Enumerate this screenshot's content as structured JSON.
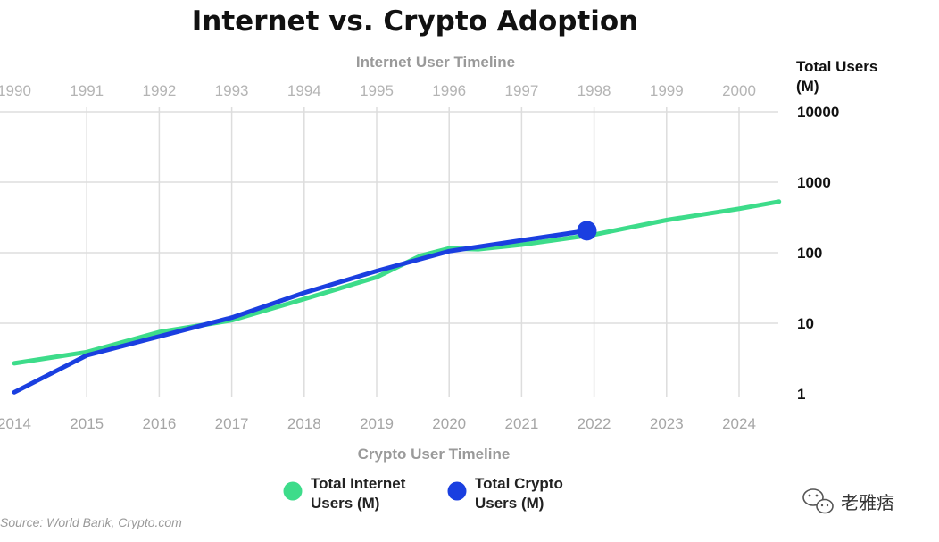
{
  "chart_data": {
    "type": "line",
    "title": "Internet vs. Crypto Adoption",
    "top_axis_label": "Internet User Timeline",
    "top_ticks": [
      "1990",
      "1991",
      "1992",
      "1993",
      "1994",
      "1995",
      "1996",
      "1997",
      "1998",
      "1999",
      "2000"
    ],
    "bottom_axis_label": "Crypto User Timeline",
    "bottom_ticks": [
      "2014",
      "2015",
      "2016",
      "2017",
      "2018",
      "2019",
      "2020",
      "2021",
      "2022",
      "2023",
      "2024"
    ],
    "ylabel_line1": "Total Users",
    "ylabel_line2": "(M)",
    "yscale": "log",
    "ylim": [
      1,
      10000
    ],
    "y_ticks": [
      1,
      10,
      100,
      1000,
      10000
    ],
    "y_tick_labels": [
      "1",
      "10",
      "100",
      "1000",
      "10000"
    ],
    "xlim": [
      0,
      10.6
    ],
    "series": [
      {
        "name": "Total Internet Users (M)",
        "color": "#3ddc8a",
        "x": [
          0,
          1,
          2,
          3,
          4,
          5,
          5.6,
          6,
          6.4,
          7,
          8,
          9,
          10,
          10.55
        ],
        "y": [
          2.7,
          3.9,
          7.5,
          11,
          22,
          45,
          90,
          115,
          112,
          130,
          180,
          290,
          420,
          530
        ]
      },
      {
        "name": "Total Crypto Users (M)",
        "color": "#1a3fe0",
        "x": [
          0,
          1,
          2,
          3,
          4,
          5,
          6,
          7,
          7.9
        ],
        "y": [
          1.05,
          3.5,
          6.5,
          12,
          27,
          55,
          105,
          150,
          205
        ]
      }
    ],
    "highlight_point": {
      "x": 7.9,
      "y": 205,
      "color": "#1a3fe0"
    },
    "grid": true,
    "legend": [
      {
        "line1": "Total Internet",
        "line2": "Users (M)",
        "color": "#3ddc8a"
      },
      {
        "line1": "Total Crypto",
        "line2": "Users (M)",
        "color": "#1a3fe0"
      }
    ],
    "legend_position": "bottom-center",
    "source": "Source: World Bank, Crypto.com"
  },
  "watermark": {
    "text": "老雅痞",
    "icon": "wechat-icon"
  }
}
